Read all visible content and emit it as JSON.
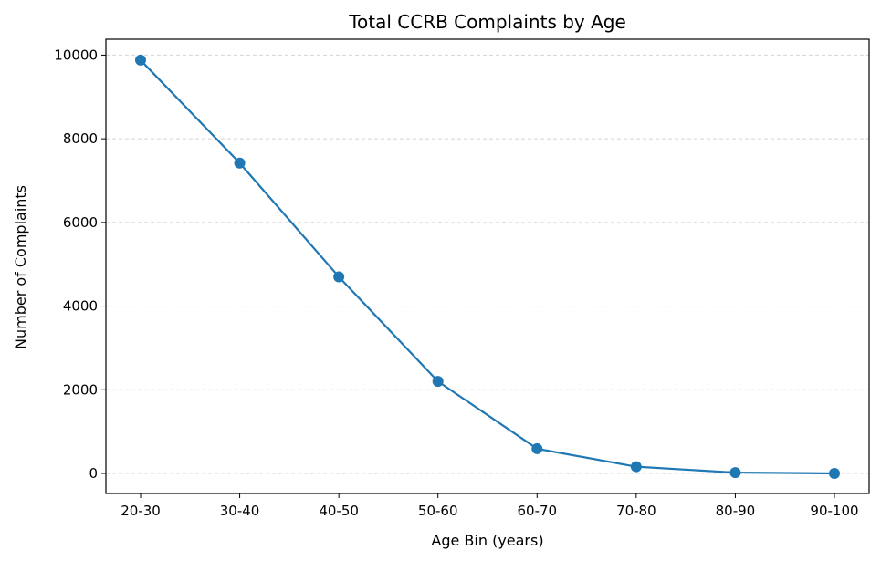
{
  "chart_data": {
    "type": "line",
    "title": "Total CCRB Complaints by Age",
    "xlabel": "Age Bin (years)",
    "ylabel": "Number of Complaints",
    "categories": [
      "20-30",
      "30-40",
      "40-50",
      "50-60",
      "60-70",
      "70-80",
      "80-90",
      "90-100"
    ],
    "series": [
      {
        "values": [
          9880,
          7420,
          4700,
          2200,
          590,
          160,
          20,
          0
        ],
        "color": "#1f77b4",
        "marker": "circle"
      }
    ],
    "ylim": [
      -480,
      10380
    ],
    "yticks": [
      0,
      2000,
      4000,
      6000,
      8000,
      10000
    ],
    "grid": {
      "y": true,
      "x": false,
      "style": "dashed",
      "color": "#d3d3d3"
    }
  }
}
